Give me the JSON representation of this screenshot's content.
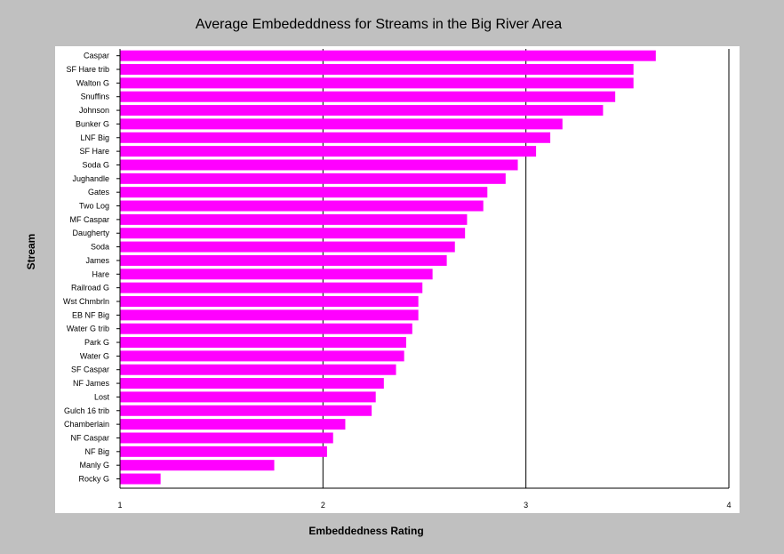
{
  "colors": {
    "bar": "#ff00ff",
    "background": "#c0c0c0",
    "plot": "#ffffff",
    "axis": "#000000"
  },
  "chart_data": {
    "type": "bar",
    "orientation": "horizontal",
    "title": "Average Embededdness for Streams in the Big River Area",
    "xlabel": "Embeddedness Rating",
    "ylabel": "Stream",
    "xlim": [
      1,
      4
    ],
    "xticks": [
      "1",
      "2",
      "3",
      "4"
    ],
    "grid": "vertical",
    "categories": [
      "Caspar",
      "SF Hare trib",
      "Walton G",
      "Snuffins",
      "Johnson",
      "Bunker G",
      "LNF Big",
      "SF Hare",
      "Soda G",
      "Jughandle",
      "Gates",
      "Two Log",
      "MF Caspar",
      "Daugherty",
      "Soda",
      "James",
      "Hare",
      "Railroad G",
      "Wst Chmbrln",
      "EB NF Big",
      "Water G trib",
      "Park G",
      "Water G",
      "SF Caspar",
      "NF James",
      "Lost",
      "Gulch 16 trib",
      "Chamberlain",
      "NF Caspar",
      "NF Big",
      "Manly G",
      "Rocky G"
    ],
    "values": [
      3.64,
      3.53,
      3.53,
      3.44,
      3.38,
      3.18,
      3.12,
      3.05,
      2.96,
      2.9,
      2.81,
      2.79,
      2.71,
      2.7,
      2.65,
      2.61,
      2.54,
      2.49,
      2.47,
      2.47,
      2.44,
      2.41,
      2.4,
      2.36,
      2.3,
      2.26,
      2.24,
      2.11,
      2.05,
      2.02,
      1.76,
      1.2
    ]
  }
}
